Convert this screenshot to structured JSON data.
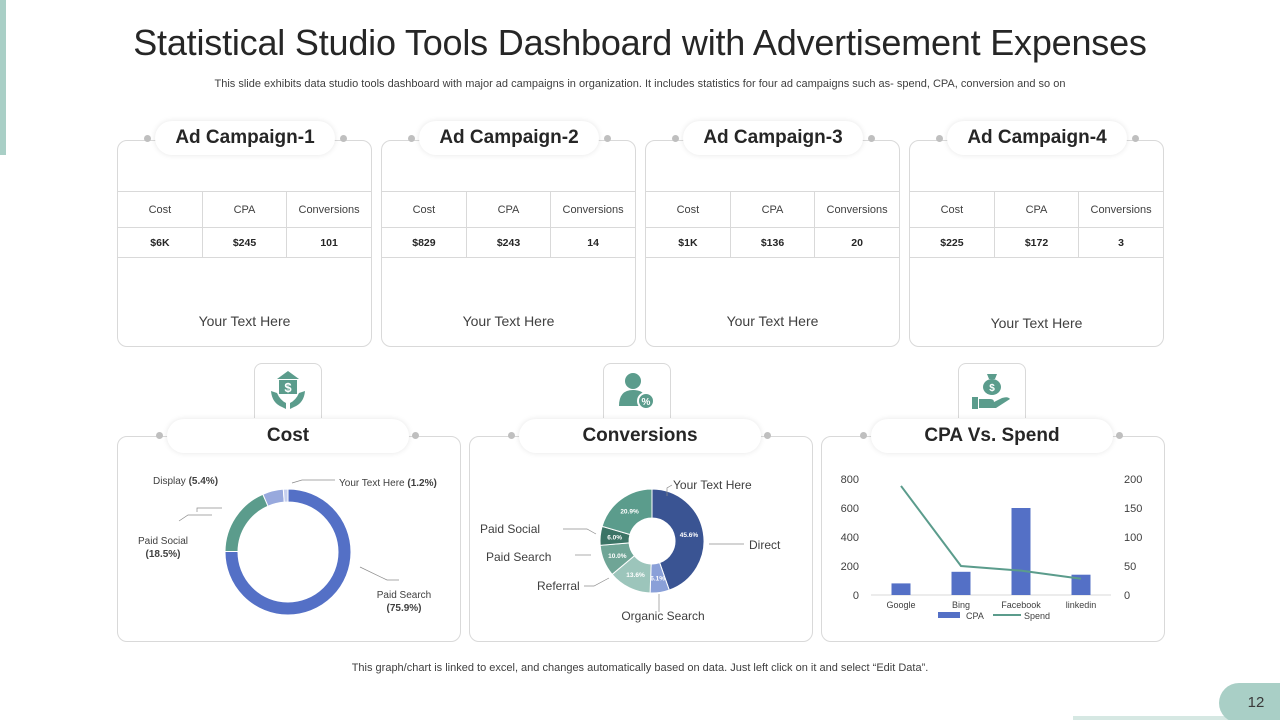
{
  "title": "Statistical Studio Tools Dashboard with Advertisement Expenses",
  "subtitle": "This slide exhibits data studio tools dashboard with major ad campaigns in organization. It includes statistics for four ad campaigns such as- spend, CPA, conversion and so on",
  "footnote": "This graph/chart is linked to excel,  and changes automatically based on data. Just left click on it and select “Edit Data”.",
  "page_number": "12",
  "accent_color": "#5b9c8c",
  "campaigns": [
    {
      "name": "Ad Campaign-1",
      "headers": [
        "Cost",
        "CPA",
        "Conversions"
      ],
      "values": [
        "$6K",
        "$245",
        "101"
      ],
      "text": "Your Text Here"
    },
    {
      "name": "Ad Campaign-2",
      "headers": [
        "Cost",
        "CPA",
        "Conversions"
      ],
      "values": [
        "$829",
        "$243",
        "14"
      ],
      "text": "Your Text Here"
    },
    {
      "name": "Ad Campaign-3",
      "headers": [
        "Cost",
        "CPA",
        "Conversions"
      ],
      "values": [
        "$1K",
        "$136",
        "20"
      ],
      "text": "Your Text Here"
    },
    {
      "name": "Ad Campaign-4",
      "headers": [
        "Cost",
        "CPA",
        "Conversions"
      ],
      "values": [
        "$225",
        "$172",
        "3"
      ],
      "text": "Your Text Here"
    }
  ],
  "sections": {
    "cost": {
      "title": "Cost",
      "icon": "dollar-hands-icon"
    },
    "conversions": {
      "title": "Conversions",
      "icon": "user-percent-icon"
    },
    "cpa_spend": {
      "title": "CPA Vs. Spend",
      "icon": "money-bag-hand-icon"
    }
  },
  "chart_data": [
    {
      "type": "pie",
      "variant": "donut",
      "labels": [
        "Paid Search",
        "Paid Social",
        "Display",
        "Your Text Here"
      ],
      "values": [
        75.9,
        18.5,
        5.4,
        1.2
      ],
      "value_labels": [
        "(75.9%)",
        "(18.5%)",
        "(5.4%)",
        "(1.2%)"
      ],
      "colors": [
        "#5470c6",
        "#5b9c8c",
        "#98a9dd",
        "#c6d0ef"
      ]
    },
    {
      "type": "pie",
      "variant": "donut",
      "labels": [
        "Direct",
        "Organic Search",
        "Referral",
        "Paid Search",
        "Paid Social",
        "Your Text Here"
      ],
      "values": [
        45.6,
        6.1,
        13.6,
        10.0,
        6.0,
        20.9
      ],
      "value_labels": [
        "45.6%",
        "6.1%",
        "13.6%",
        "10.0%",
        "6.0%",
        "20.9%"
      ],
      "colors": [
        "#3a5493",
        "#8aa0d8",
        "#9cc5bb",
        "#6fa596",
        "#3c7466",
        "#5b9c8c"
      ]
    },
    {
      "type": "bar",
      "categories": [
        "Google",
        "Bing",
        "Facebook",
        "linkedin"
      ],
      "series": [
        {
          "name": "CPA",
          "type": "bar",
          "axis": "left",
          "values": [
            80,
            160,
            600,
            140
          ],
          "color": "#5470c6"
        },
        {
          "name": "Spend",
          "type": "line",
          "axis": "right",
          "values": [
            188,
            50,
            42,
            28
          ],
          "color": "#5b9c8c"
        }
      ],
      "y_left": {
        "ticks": [
          "0",
          "200",
          "400",
          "600",
          "800"
        ],
        "range": [
          0,
          800
        ]
      },
      "y_right": {
        "ticks": [
          "0",
          "50",
          "100",
          "150",
          "200"
        ],
        "range": [
          0,
          200
        ]
      },
      "legend": "bottom"
    }
  ]
}
